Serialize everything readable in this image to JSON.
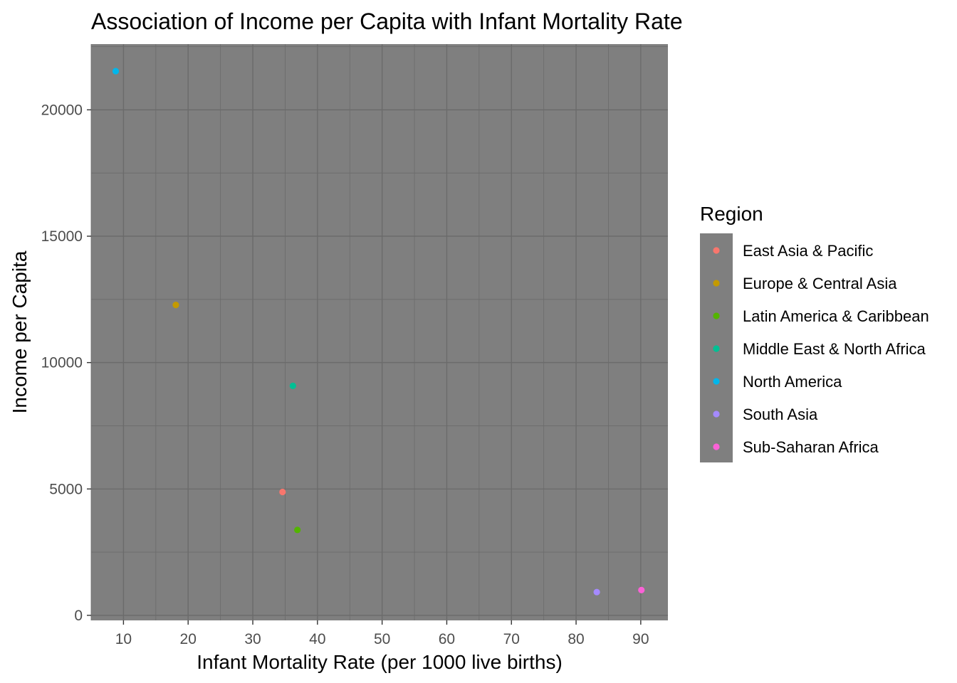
{
  "chart_data": {
    "type": "scatter",
    "title": "Association of Income per Capita with Infant Mortality Rate",
    "xlabel": "Infant Mortality Rate (per 1000 live births)",
    "ylabel": "Income per Capita",
    "xlim": [
      5,
      94.2
    ],
    "ylim": [
      -200,
      22600
    ],
    "x_ticks": [
      10,
      20,
      30,
      40,
      50,
      60,
      70,
      80,
      90
    ],
    "y_ticks": [
      0,
      5000,
      10000,
      15000,
      20000
    ],
    "x_tick_labels": [
      "10",
      "20",
      "30",
      "40",
      "50",
      "60",
      "70",
      "80",
      "90"
    ],
    "y_tick_labels": [
      "0",
      "5000",
      "10000",
      "15000",
      "20000"
    ],
    "grid": true,
    "background": "#7f7f7f",
    "gridline_color": "#6b6b6b",
    "legend": {
      "title": "Region",
      "placement": "right"
    },
    "series": [
      {
        "name": "East Asia & Pacific",
        "color": "#F8766D",
        "points": [
          {
            "x": 34.6,
            "y": 4880
          }
        ]
      },
      {
        "name": "Europe & Central Asia",
        "color": "#C49A00",
        "points": [
          {
            "x": 18.1,
            "y": 12280
          }
        ]
      },
      {
        "name": "Latin America & Caribbean",
        "color": "#53B400",
        "points": [
          {
            "x": 36.9,
            "y": 3380
          }
        ]
      },
      {
        "name": "Middle East & North Africa",
        "color": "#00C094",
        "points": [
          {
            "x": 36.2,
            "y": 9080
          }
        ]
      },
      {
        "name": "North America",
        "color": "#00B6EB",
        "points": [
          {
            "x": 8.8,
            "y": 21530
          }
        ]
      },
      {
        "name": "South Asia",
        "color": "#A58AFF",
        "points": [
          {
            "x": 83.2,
            "y": 920
          }
        ]
      },
      {
        "name": "Sub-Saharan Africa",
        "color": "#FB61D7",
        "points": [
          {
            "x": 90.1,
            "y": 1000
          }
        ]
      }
    ]
  }
}
